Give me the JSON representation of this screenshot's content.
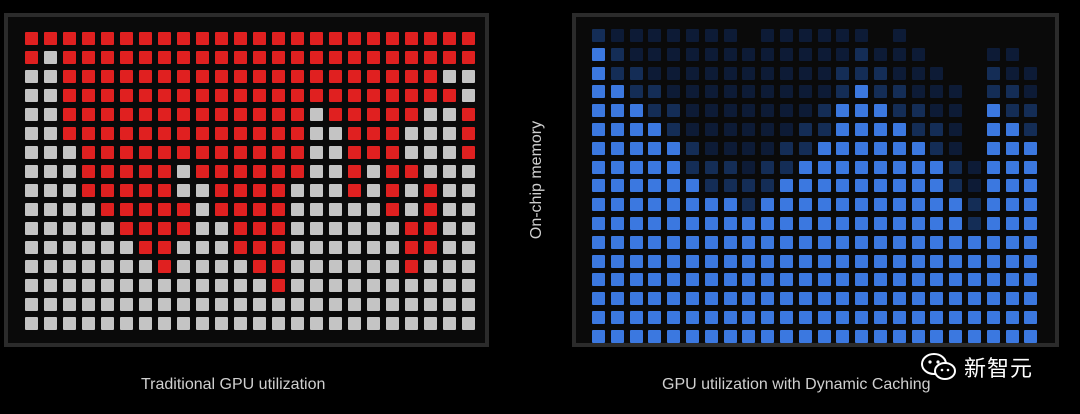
{
  "captions": {
    "left": "Traditional GPU utilization",
    "right": "GPU utilization with Dynamic Caching",
    "side": "On-chip memory"
  },
  "watermark": {
    "icon": "wechat-icon",
    "text": "新智元"
  },
  "colors": {
    "red_used": "#e02020",
    "gray_unused": "#c4c4c4",
    "blue_bright": "#3b78e0",
    "blue_dark": "#142d56",
    "blue_deep": "#0d1b36"
  },
  "traditional_grid": {
    "columns": 24,
    "rows": 16,
    "red_rows": [
      "111111111111111111111111",
      "101111111111111111111111",
      "001111111111111111111100",
      "001111111111111111111110",
      "001111111111111011111001",
      "001111111111111001110001",
      "000111111111111001110001",
      "000111110111111001011000",
      "000111110011110001010100",
      "000011111011110000010100",
      "000001111001110000001100",
      "000000110001110000001100",
      "000000010000110000001000",
      "000000000000010000000000",
      "000000000000000000000000",
      "000000000000000000000000"
    ]
  },
  "dynamic_grid": {
    "columns": 24,
    "rows": 17,
    "bright_column_heights": [
      16,
      14,
      13,
      12,
      11,
      9,
      8,
      8,
      7,
      8,
      9,
      10,
      11,
      13,
      14,
      13,
      12,
      11,
      10,
      8,
      6,
      13,
      12,
      11
    ],
    "dark_column_heights": [
      17,
      17,
      17,
      17,
      17,
      17,
      17,
      17,
      16,
      17,
      17,
      17,
      17,
      17,
      17,
      16,
      17,
      16,
      15,
      14,
      10,
      16,
      16,
      15
    ]
  }
}
